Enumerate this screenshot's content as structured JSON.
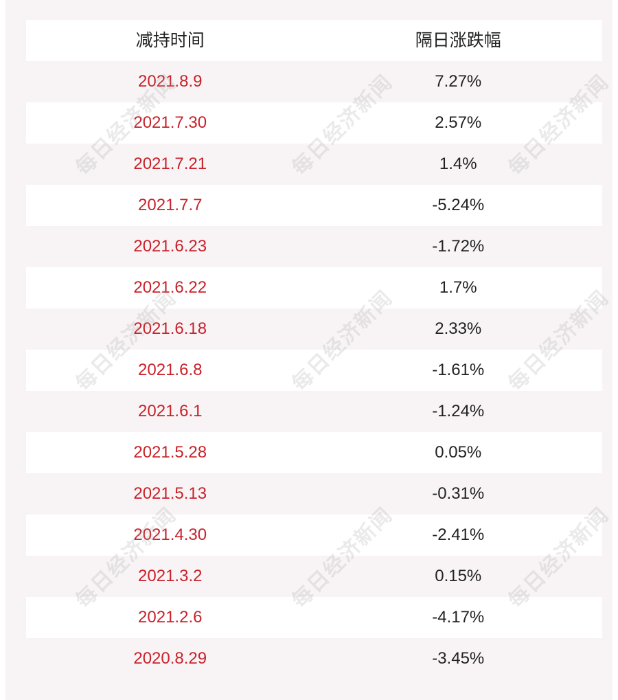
{
  "table": {
    "headers": {
      "date": "减持时间",
      "change": "隔日涨跌幅"
    },
    "rows": [
      {
        "date": "2021.8.9",
        "change": "7.27%"
      },
      {
        "date": "2021.7.30",
        "change": "2.57%"
      },
      {
        "date": "2021.7.21",
        "change": "1.4%"
      },
      {
        "date": "2021.7.7",
        "change": "-5.24%"
      },
      {
        "date": "2021.6.23",
        "change": "-1.72%"
      },
      {
        "date": "2021.6.22",
        "change": "1.7%"
      },
      {
        "date": "2021.6.18",
        "change": "2.33%"
      },
      {
        "date": "2021.6.8",
        "change": "-1.61%"
      },
      {
        "date": "2021.6.1",
        "change": "-1.24%"
      },
      {
        "date": "2021.5.28",
        "change": "0.05%"
      },
      {
        "date": "2021.5.13",
        "change": "-0.31%"
      },
      {
        "date": "2021.4.30",
        "change": "-2.41%"
      },
      {
        "date": "2021.3.2",
        "change": "0.15%"
      },
      {
        "date": "2021.2.6",
        "change": "-4.17%"
      },
      {
        "date": "2020.8.29",
        "change": "-3.45%"
      }
    ]
  },
  "watermark": {
    "text": "每日经济新闻"
  },
  "colors": {
    "date_text": "#c9222b",
    "value_text": "#222222",
    "row_tint": "#f8f4f5"
  }
}
